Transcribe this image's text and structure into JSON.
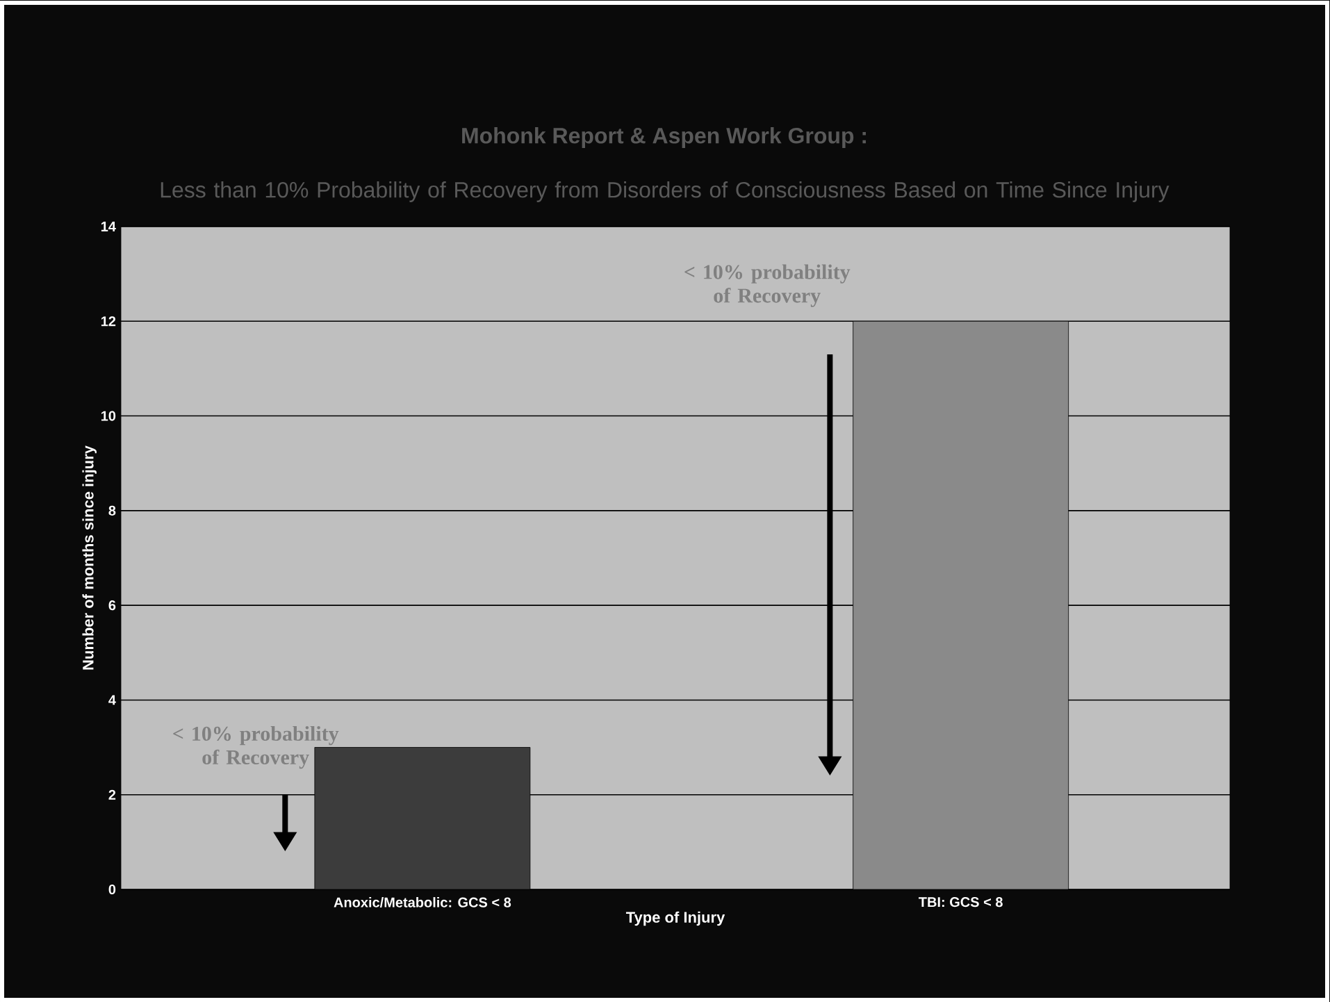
{
  "chart_data": {
    "type": "bar",
    "title": "Mohonk Report & Aspen Work Group :",
    "subtitle": "Less than 10% Probability of Recovery from Disorders of Consciousness Based on Time Since Injury",
    "xlabel": "Type of Injury",
    "ylabel": "Number of months since injury",
    "categories": [
      "Anoxic/Metabolic: GCS < 8",
      "TBI: GCS < 8"
    ],
    "values": [
      3,
      12
    ],
    "colors": [
      "#3c3c3c",
      "#8a8a8a"
    ],
    "ylim": [
      0,
      14
    ],
    "yticks": [
      0,
      2,
      4,
      6,
      8,
      10,
      12,
      14
    ],
    "grid": "y",
    "annotations": [
      "< 10% probability of Recovery",
      "< 10% probability of Recovery"
    ]
  }
}
